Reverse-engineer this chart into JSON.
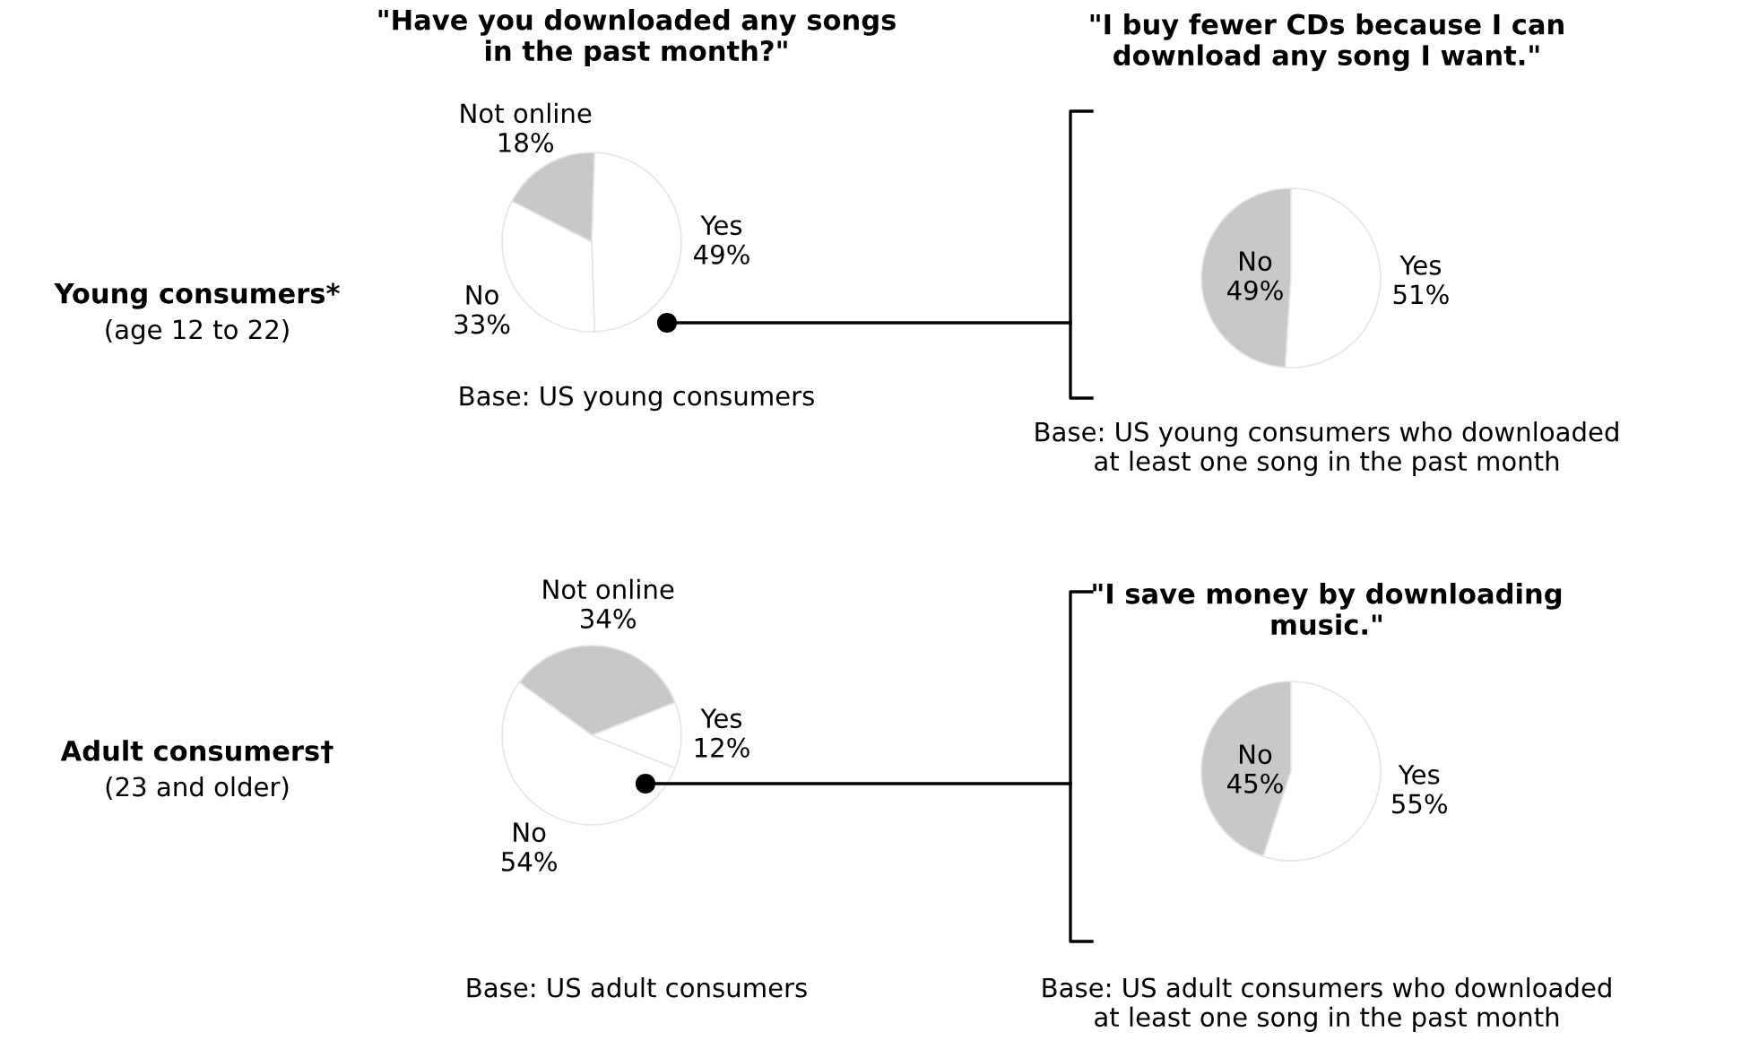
{
  "chart_data": [
    {
      "type": "pie",
      "title": "\"Have you downloaded any songs\nin the past month?\"",
      "categories": [
        "Yes",
        "Not online",
        "No"
      ],
      "values": [
        49,
        18,
        33
      ],
      "value_labels": [
        "49%",
        "18%",
        "33%"
      ],
      "colors": [
        "#ffffff",
        "#c8c8c8",
        "#ffffff"
      ],
      "annotations": [
        "Young consumers*",
        "(age 12 to 22)",
        "Base: US young consumers"
      ]
    },
    {
      "type": "pie",
      "title": "\"I buy fewer CDs because I can\ndownload any song I want.\"",
      "categories": [
        "No",
        "Yes"
      ],
      "values": [
        49,
        51
      ],
      "value_labels": [
        "49%",
        "51%"
      ],
      "colors": [
        "#c8c8c8",
        "#ffffff"
      ],
      "annotations": [
        "Base: US young consumers who downloaded\nat least one song in the past month"
      ]
    },
    {
      "type": "pie",
      "categories": [
        "Yes",
        "Not online",
        "No"
      ],
      "values": [
        12,
        34,
        54
      ],
      "value_labels": [
        "12%",
        "34%",
        "54%"
      ],
      "colors": [
        "#ffffff",
        "#c8c8c8",
        "#ffffff"
      ],
      "annotations": [
        "Adult consumers†",
        "(23 and older)",
        "Base: US adult consumers"
      ]
    },
    {
      "type": "pie",
      "title": "\"I save money by downloading\nmusic.\"",
      "categories": [
        "No",
        "Yes"
      ],
      "values": [
        45,
        55
      ],
      "value_labels": [
        "45%",
        "55%"
      ],
      "colors": [
        "#c8c8c8",
        "#ffffff"
      ],
      "annotations": [
        "Base: US adult consumers who downloaded\nat least one song in the past month"
      ]
    }
  ]
}
